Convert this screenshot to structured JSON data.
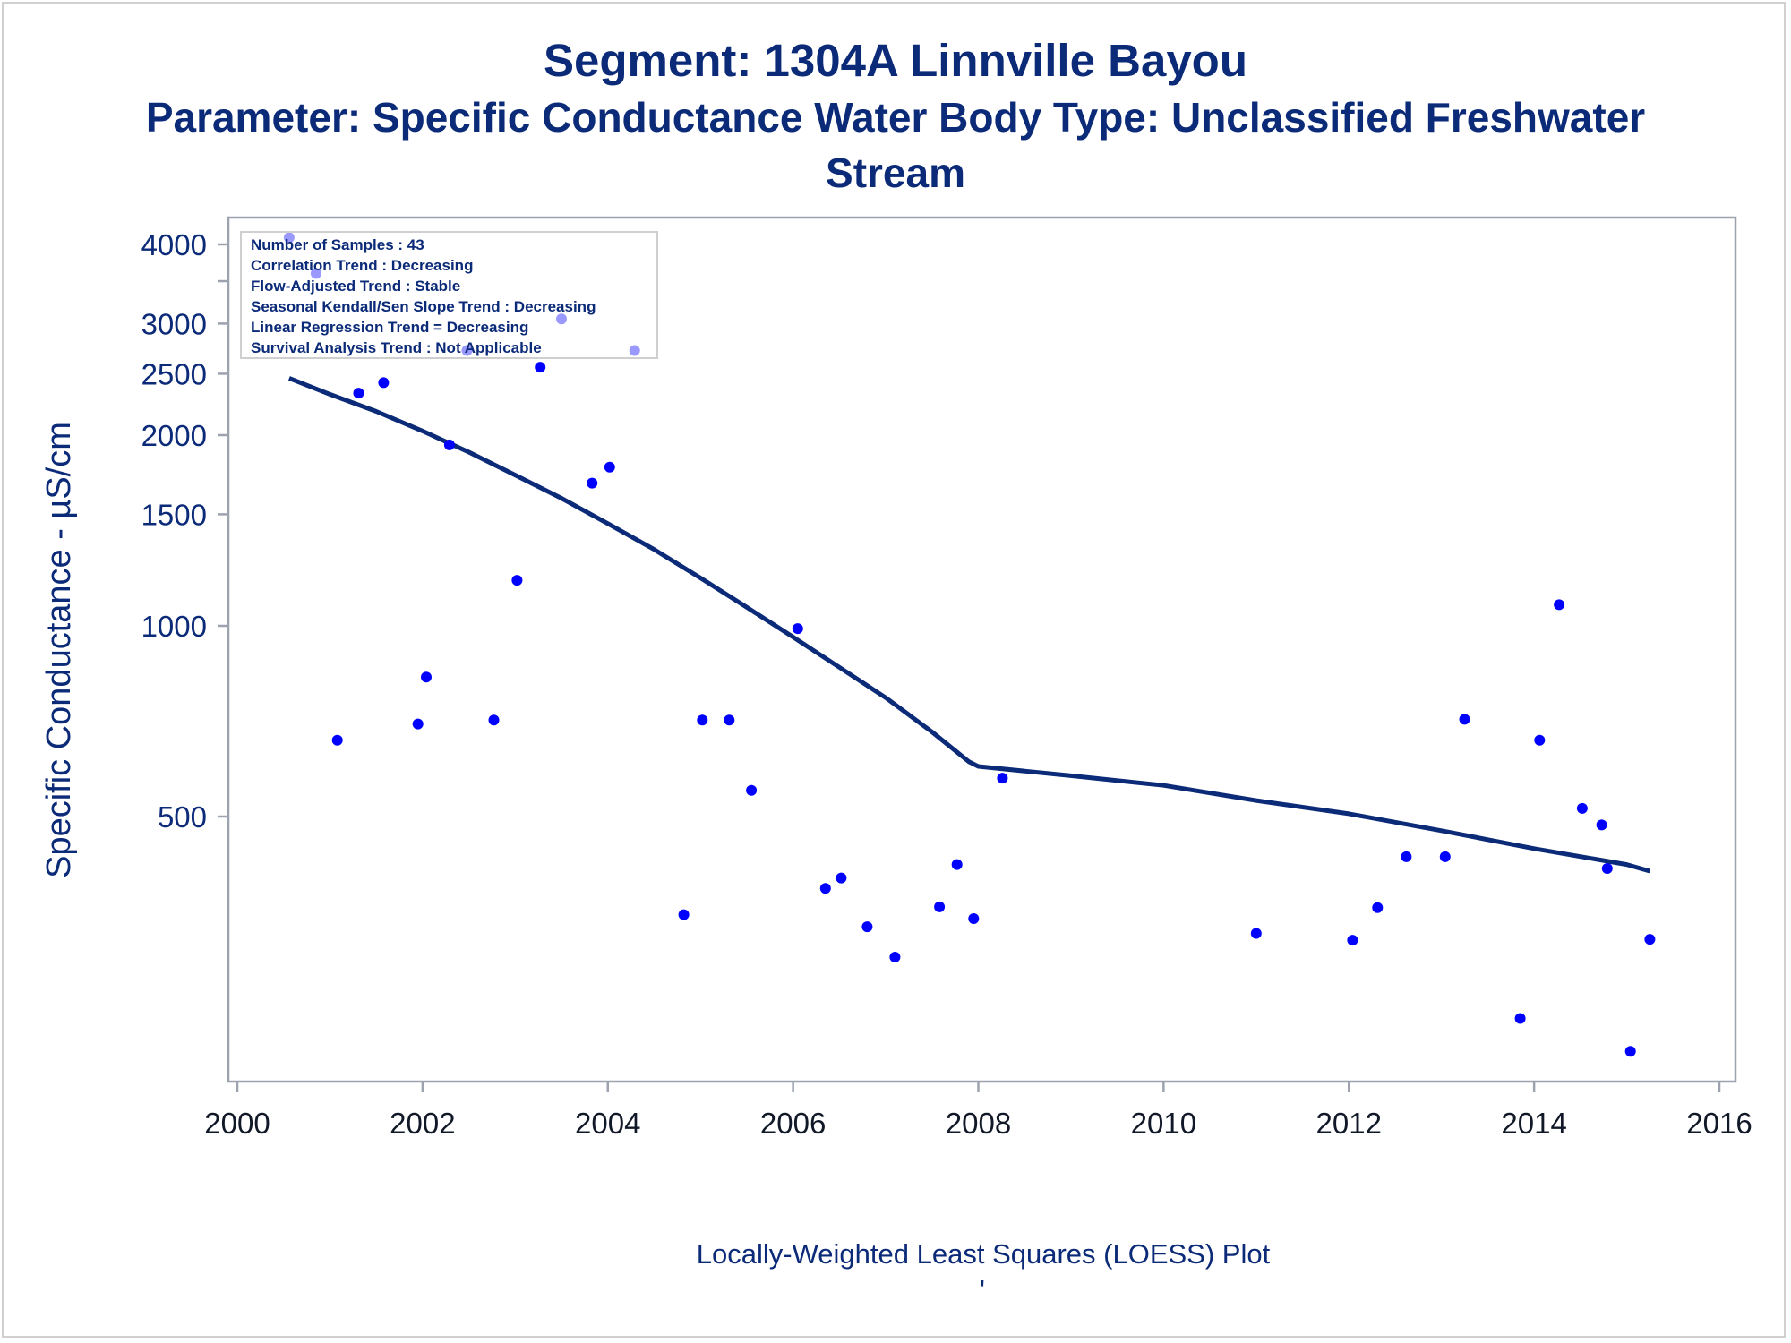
{
  "titles": {
    "line1": "Segment: 1304A  Linnville Bayou",
    "line2": "Parameter: Specific Conductance   Water Body Type: Unclassified Freshwater",
    "line3": "Stream"
  },
  "colors": {
    "title": "#0b2a78",
    "points": "#0000ff",
    "loess_line": "#0b2a78",
    "frame": "#9ca3af"
  },
  "stats_box": [
    "Number of Samples : 43",
    "Correlation Trend : Decreasing",
    "Flow-Adjusted Trend : Stable",
    "Seasonal Kendall/Sen Slope Trend : Decreasing",
    "Linear Regression Trend = Decreasing",
    "Survival Analysis Trend : Not Applicable"
  ],
  "footnote": {
    "text": "Locally-Weighted Least Squares (LOESS) Plot",
    "mark": "'"
  },
  "chart_data": {
    "type": "scatter",
    "title": "Segment: 1304A  Linnville Bayou",
    "ylabel": "Specific Conductance -  µS/cm",
    "xlabel": "",
    "y_scale": "log",
    "xlim": [
      2000,
      2016
    ],
    "x_ticks": [
      2000,
      2002,
      2004,
      2006,
      2008,
      2010,
      2012,
      2014,
      2016
    ],
    "y_ticks": [
      500,
      1000,
      1500,
      2000,
      2500,
      3000,
      4000
    ],
    "y_minor_ticks": [
      3500
    ],
    "legend_placement": "top-left",
    "grid": false,
    "points": [
      [
        2000.56,
        4100
      ],
      [
        2000.85,
        3600
      ],
      [
        2001.08,
        660
      ],
      [
        2001.31,
        2330
      ],
      [
        2001.58,
        2420
      ],
      [
        2001.95,
        700
      ],
      [
        2002.04,
        830
      ],
      [
        2002.29,
        1930
      ],
      [
        2002.48,
        2720
      ],
      [
        2002.77,
        710
      ],
      [
        2003.02,
        1180
      ],
      [
        2003.27,
        2560
      ],
      [
        2003.5,
        3050
      ],
      [
        2003.83,
        1680
      ],
      [
        2004.02,
        1780
      ],
      [
        2004.29,
        2720
      ],
      [
        2004.82,
        350
      ],
      [
        2005.02,
        710
      ],
      [
        2005.31,
        710
      ],
      [
        2005.55,
        550
      ],
      [
        2006.05,
        990
      ],
      [
        2006.35,
        385
      ],
      [
        2006.52,
        400
      ],
      [
        2006.8,
        335
      ],
      [
        2007.1,
        300
      ],
      [
        2007.58,
        360
      ],
      [
        2007.77,
        420
      ],
      [
        2007.95,
        345
      ],
      [
        2008.26,
        575
      ],
      [
        2011.0,
        327
      ],
      [
        2012.04,
        319
      ],
      [
        2012.31,
        359
      ],
      [
        2012.62,
        432
      ],
      [
        2013.04,
        432
      ],
      [
        2013.25,
        712
      ],
      [
        2013.85,
        240
      ],
      [
        2014.06,
        660
      ],
      [
        2014.27,
        1080
      ],
      [
        2014.52,
        515
      ],
      [
        2014.73,
        485
      ],
      [
        2014.79,
        414
      ],
      [
        2015.04,
        213
      ],
      [
        2015.25,
        320
      ]
    ],
    "loess_line": [
      [
        2000.56,
        2460
      ],
      [
        2001.0,
        2320
      ],
      [
        2001.5,
        2180
      ],
      [
        2002.0,
        2030
      ],
      [
        2002.5,
        1880
      ],
      [
        2003.0,
        1730
      ],
      [
        2003.5,
        1590
      ],
      [
        2004.0,
        1450
      ],
      [
        2004.5,
        1320
      ],
      [
        2005.0,
        1190
      ],
      [
        2005.5,
        1070
      ],
      [
        2006.0,
        960
      ],
      [
        2006.5,
        860
      ],
      [
        2007.0,
        770
      ],
      [
        2007.5,
        680
      ],
      [
        2007.9,
        610
      ],
      [
        2008.0,
        600
      ],
      [
        2009.0,
        580
      ],
      [
        2010.0,
        560
      ],
      [
        2011.0,
        530
      ],
      [
        2012.0,
        505
      ],
      [
        2013.0,
        475
      ],
      [
        2014.0,
        445
      ],
      [
        2015.0,
        420
      ],
      [
        2015.25,
        410
      ]
    ]
  }
}
